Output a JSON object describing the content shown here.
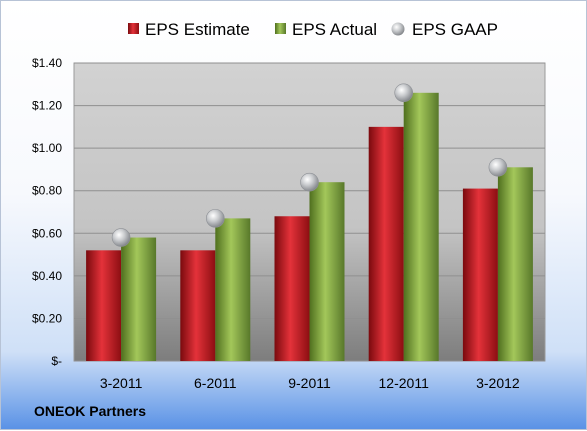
{
  "company": "ONEOK Partners",
  "chart_data": {
    "type": "bar",
    "categories": [
      "3-2011",
      "6-2011",
      "9-2011",
      "12-2011",
      "3-2012"
    ],
    "series": [
      {
        "name": "EPS Estimate",
        "kind": "bar",
        "color": "#c8161d",
        "values": [
          0.52,
          0.52,
          0.68,
          1.1,
          0.81
        ]
      },
      {
        "name": "EPS Actual",
        "kind": "bar",
        "color": "#7fa53b",
        "values": [
          0.58,
          0.67,
          0.84,
          1.26,
          0.91
        ]
      },
      {
        "name": "EPS GAAP",
        "kind": "marker",
        "color": "#b9bcc0",
        "values": [
          0.58,
          0.67,
          0.84,
          1.26,
          0.91
        ]
      }
    ],
    "ylim": [
      0,
      1.4
    ],
    "yticks": [
      0,
      0.2,
      0.4,
      0.6,
      0.8,
      1.0,
      1.2,
      1.4
    ],
    "ytick_labels": [
      "$-",
      "$0.20",
      "$0.40",
      "$0.60",
      "$0.80",
      "$1.00",
      "$1.20",
      "$1.40"
    ],
    "grid": true,
    "legend_position": "top"
  }
}
